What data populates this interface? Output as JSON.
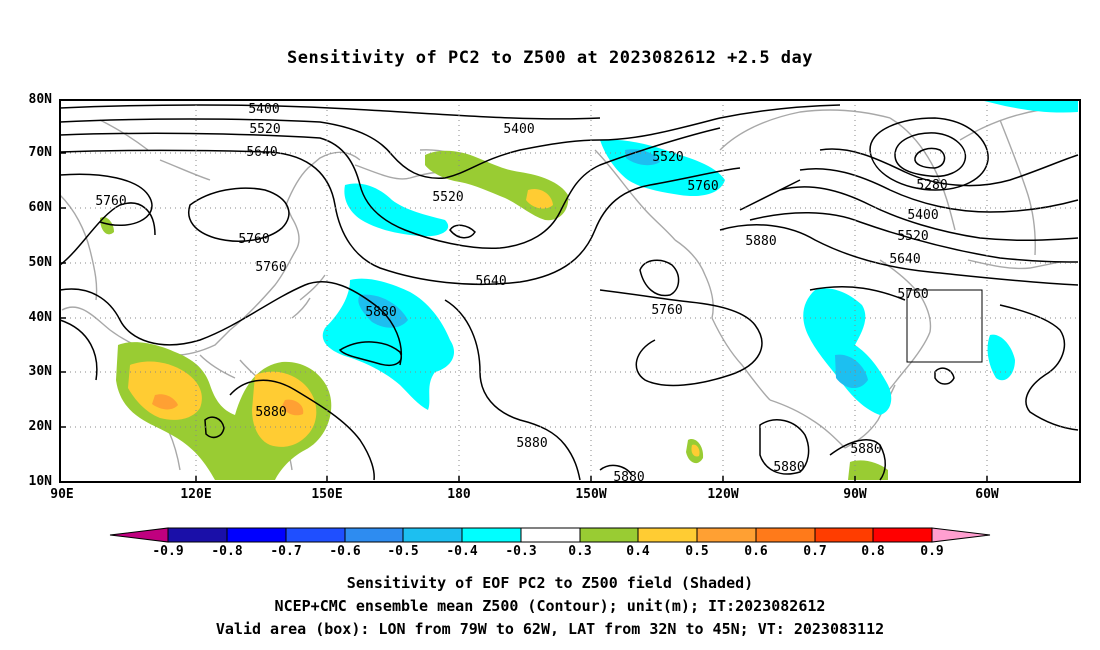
{
  "title": "Sensitivity of PC2 to Z500 at 2023082612 +2.5 day",
  "axes": {
    "lat_labels": [
      "80N",
      "70N",
      "60N",
      "50N",
      "40N",
      "30N",
      "20N",
      "10N"
    ],
    "lon_labels": [
      "90E",
      "120E",
      "150E",
      "180",
      "150W",
      "120W",
      "90W",
      "60W"
    ]
  },
  "contour_labels": [
    "5400",
    "5520",
    "5640",
    "5760",
    "5880",
    "5280"
  ],
  "colorbar": {
    "labels": [
      "-0.9",
      "-0.8",
      "-0.7",
      "-0.6",
      "-0.5",
      "-0.4",
      "-0.3",
      "0.3",
      "0.4",
      "0.5",
      "0.6",
      "0.7",
      "0.8",
      "0.9"
    ],
    "colors": [
      "#c0007f",
      "#1a0fa8",
      "#0000ff",
      "#1f4fff",
      "#2e8cf0",
      "#1dbff0",
      "#00ffff",
      "#ffffff",
      "#99cc33",
      "#ffcc33",
      "#ffa033",
      "#ff7a1a",
      "#ff3d00",
      "#ff0000",
      "#ff9fd0"
    ]
  },
  "captions": [
    "Sensitivity of EOF PC2 to Z500 field (Shaded)",
    "NCEP+CMC ensemble mean Z500 (Contour); unit(m); IT:2023082612",
    "Valid area (box): LON from 79W to 62W, LAT from 32N to 45N; VT: 2023083112"
  ],
  "colors": {
    "coast": "#a8a8a8",
    "contour": "#000000",
    "grid": "#888888"
  }
}
